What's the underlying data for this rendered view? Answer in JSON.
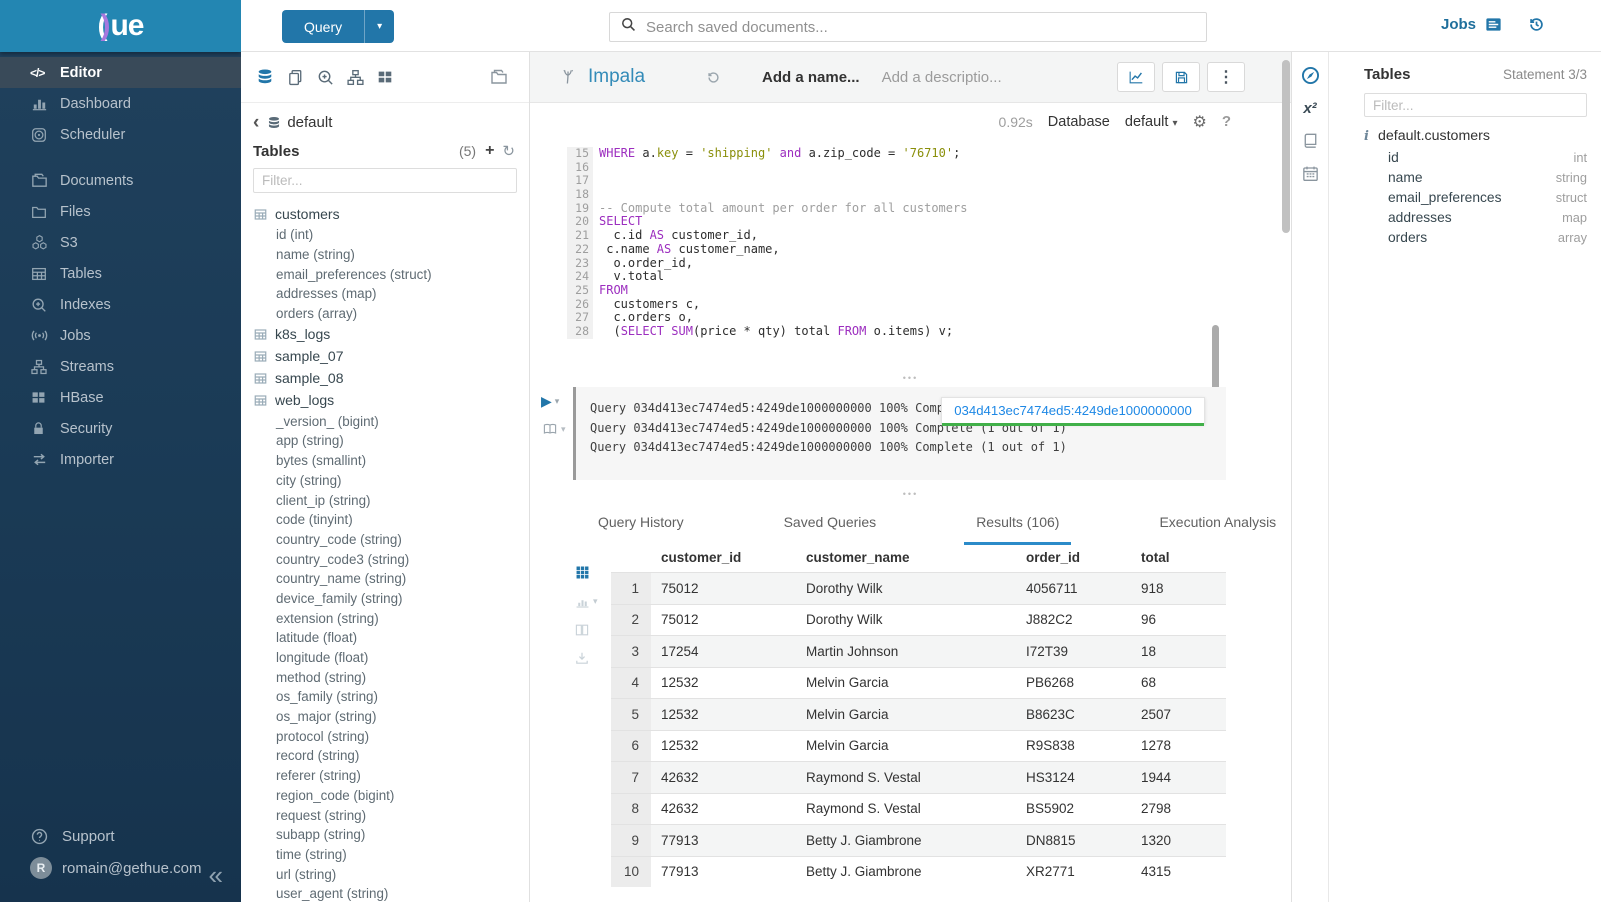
{
  "topbar": {
    "query_label": "Query",
    "search_placeholder": "Search saved documents...",
    "jobs_label": "Jobs"
  },
  "sidebar": {
    "items": [
      {
        "label": "Editor",
        "icon": "code-icon",
        "active": true,
        "gap": false
      },
      {
        "label": "Dashboard",
        "icon": "dashboard-icon",
        "active": false,
        "gap": false
      },
      {
        "label": "Scheduler",
        "icon": "scheduler-icon",
        "active": false,
        "gap": false
      },
      {
        "label": "Documents",
        "icon": "documents-icon",
        "active": false,
        "gap": true
      },
      {
        "label": "Files",
        "icon": "files-icon",
        "active": false,
        "gap": false
      },
      {
        "label": "S3",
        "icon": "s3-icon",
        "active": false,
        "gap": false
      },
      {
        "label": "Tables",
        "icon": "tables-icon",
        "active": false,
        "gap": false
      },
      {
        "label": "Indexes",
        "icon": "indexes-icon",
        "active": false,
        "gap": false
      },
      {
        "label": "Jobs",
        "icon": "jobs-icon",
        "active": false,
        "gap": false
      },
      {
        "label": "Streams",
        "icon": "streams-icon",
        "active": false,
        "gap": false
      },
      {
        "label": "HBase",
        "icon": "hbase-icon",
        "active": false,
        "gap": false
      },
      {
        "label": "Security",
        "icon": "security-icon",
        "active": false,
        "gap": false
      },
      {
        "label": "Importer",
        "icon": "importer-icon",
        "active": false,
        "gap": false
      }
    ],
    "footer": {
      "support_label": "Support",
      "user_email": "romain@gethue.com",
      "avatar_letter": "R"
    }
  },
  "left_panel": {
    "breadcrumb": "default",
    "tables_label": "Tables",
    "tables_count": "(5)",
    "filter_placeholder": "Filter...",
    "tables": [
      {
        "name": "customers",
        "columns": [
          "id (int)",
          "name (string)",
          "email_preferences (struct)",
          "addresses (map)",
          "orders (array)"
        ]
      },
      {
        "name": "k8s_logs",
        "columns": []
      },
      {
        "name": "sample_07",
        "columns": []
      },
      {
        "name": "sample_08",
        "columns": []
      },
      {
        "name": "web_logs",
        "columns": [
          "_version_ (bigint)",
          "app (string)",
          "bytes (smallint)",
          "city (string)",
          "client_ip (string)",
          "code (tinyint)",
          "country_code (string)",
          "country_code3 (string)",
          "country_name (string)",
          "device_family (string)",
          "extension (string)",
          "latitude (float)",
          "longitude (float)",
          "method (string)",
          "os_family (string)",
          "os_major (string)",
          "protocol (string)",
          "record (string)",
          "referer (string)",
          "region_code (bigint)",
          "request (string)",
          "subapp (string)",
          "time (string)",
          "url (string)",
          "user_agent (string)"
        ]
      }
    ]
  },
  "editor": {
    "engine": "Impala",
    "name_placeholder": "Add a name...",
    "description_placeholder": "Add a descriptio...",
    "duration": "0.92s",
    "database_label": "Database",
    "database_value": "default",
    "code_lines": [
      {
        "n": 15,
        "tokens": [
          [
            "kw",
            "WHERE"
          ],
          [
            "pl",
            " a."
          ],
          [
            "str",
            "key"
          ],
          [
            "pl",
            " = "
          ],
          [
            "str",
            "'shipping'"
          ],
          [
            "kw",
            " and"
          ],
          [
            "pl",
            " a.zip_code = "
          ],
          [
            "str",
            "'76710'"
          ],
          [
            "pl",
            ";"
          ]
        ]
      },
      {
        "n": 16,
        "tokens": []
      },
      {
        "n": 17,
        "tokens": []
      },
      {
        "n": 18,
        "tokens": []
      },
      {
        "n": 19,
        "tokens": [
          [
            "cmt",
            "-- Compute total amount per order for all customers"
          ]
        ]
      },
      {
        "n": 20,
        "tokens": [
          [
            "kw",
            "SELECT"
          ]
        ]
      },
      {
        "n": 21,
        "tokens": [
          [
            "pl",
            "  c.id "
          ],
          [
            "kw",
            "AS"
          ],
          [
            "pl",
            " customer_id,"
          ]
        ]
      },
      {
        "n": 22,
        "tokens": [
          [
            "pl",
            " c.name "
          ],
          [
            "kw",
            "AS"
          ],
          [
            "pl",
            " customer_name,"
          ]
        ]
      },
      {
        "n": 23,
        "tokens": [
          [
            "pl",
            "  o.order_id,"
          ]
        ]
      },
      {
        "n": 24,
        "tokens": [
          [
            "pl",
            "  v.total"
          ]
        ]
      },
      {
        "n": 25,
        "tokens": [
          [
            "kw",
            "FROM"
          ]
        ]
      },
      {
        "n": 26,
        "tokens": [
          [
            "pl",
            "  customers c,"
          ]
        ]
      },
      {
        "n": 27,
        "tokens": [
          [
            "pl",
            "  c.orders o,"
          ]
        ]
      },
      {
        "n": 28,
        "tokens": [
          [
            "pl",
            "  ("
          ],
          [
            "kw",
            "SELECT"
          ],
          [
            "pl",
            " "
          ],
          [
            "kw",
            "SUM"
          ],
          [
            "pl",
            "(price * qty) total "
          ],
          [
            "kw",
            "FROM"
          ],
          [
            "pl",
            " o.items) v;"
          ]
        ]
      }
    ]
  },
  "log": {
    "lines": [
      "Query 034d413ec7474ed5:4249de1000000000 100% Complete (1 out of 1)",
      "Query 034d413ec7474ed5:4249de1000000000 100% Complete (1 out of 1)",
      "Query 034d413ec7474ed5:4249de1000000000 100% Complete (1 out of 1)"
    ],
    "popup_text": "034d413ec7474ed5:4249de1000000000"
  },
  "tabs": {
    "items": [
      "Query History",
      "Saved Queries",
      "Results (106)",
      "Execution Analysis"
    ],
    "active_index": 2
  },
  "results": {
    "columns": [
      "customer_id",
      "customer_name",
      "order_id",
      "total"
    ],
    "rows": [
      [
        "1",
        "75012",
        "Dorothy Wilk",
        "4056711",
        "918"
      ],
      [
        "2",
        "75012",
        "Dorothy Wilk",
        "J882C2",
        "96"
      ],
      [
        "3",
        "17254",
        "Martin Johnson",
        "I72T39",
        "18"
      ],
      [
        "4",
        "12532",
        "Melvin Garcia",
        "PB6268",
        "68"
      ],
      [
        "5",
        "12532",
        "Melvin Garcia",
        "B8623C",
        "2507"
      ],
      [
        "6",
        "12532",
        "Melvin Garcia",
        "R9S838",
        "1278"
      ],
      [
        "7",
        "42632",
        "Raymond S. Vestal",
        "HS3124",
        "1944"
      ],
      [
        "8",
        "42632",
        "Raymond S. Vestal",
        "BS5902",
        "2798"
      ],
      [
        "9",
        "77913",
        "Betty J. Giambrone",
        "DN8815",
        "1320"
      ],
      [
        "10",
        "77913",
        "Betty J. Giambrone",
        "XR2771",
        "4315"
      ]
    ]
  },
  "right_panel": {
    "title": "Tables",
    "statement": "Statement 3/3",
    "filter_placeholder": "Filter...",
    "table_name": "default.customers",
    "columns": [
      {
        "name": "id",
        "type": "int"
      },
      {
        "name": "name",
        "type": "string"
      },
      {
        "name": "email_preferences",
        "type": "struct"
      },
      {
        "name": "addresses",
        "type": "map"
      },
      {
        "name": "orders",
        "type": "array"
      }
    ]
  },
  "colors": {
    "brand": "#2386b2",
    "accent": "#2276a9",
    "link": "#1e88e5",
    "progress_green": "#41b049",
    "keyword_purple": "#9c2ebf",
    "string_olive": "#8a8f0a"
  }
}
